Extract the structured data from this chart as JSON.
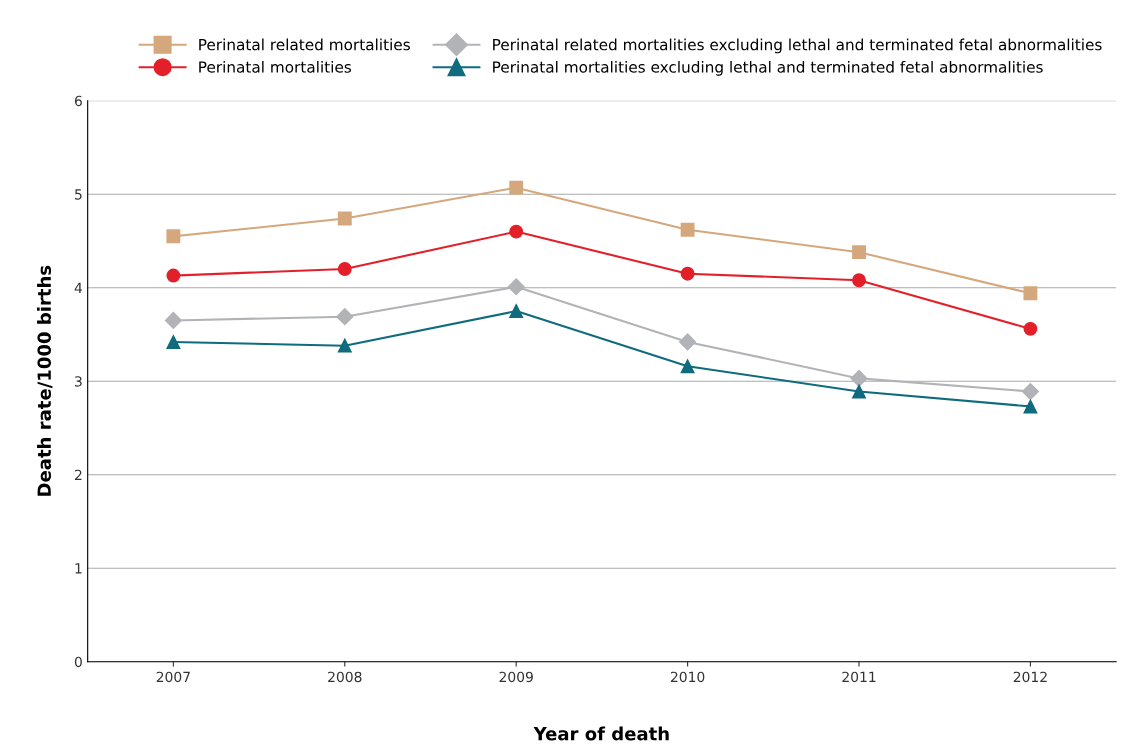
{
  "chart_data": {
    "type": "line",
    "xlabel": "Year of death",
    "ylabel": "Death rate/1000 births",
    "categories": [
      "2007",
      "2008",
      "2009",
      "2010",
      "2011",
      "2012"
    ],
    "series": [
      {
        "name": "Perinatal related mortalities",
        "color": "#d4a87c",
        "marker": "square",
        "values": [
          4.55,
          4.74,
          5.07,
          4.62,
          4.38,
          3.94
        ]
      },
      {
        "name": "Perinatal mortalities",
        "color": "#e3202a",
        "marker": "circle",
        "values": [
          4.13,
          4.2,
          4.6,
          4.15,
          4.08,
          3.56
        ]
      },
      {
        "name": "Perinatal related mortalities excluding lethal and terminated fetal abnormalities",
        "color": "#b1b3b6",
        "marker": "diamond",
        "values": [
          3.65,
          3.69,
          4.01,
          3.42,
          3.03,
          2.89
        ]
      },
      {
        "name": "Perinatal mortalities excluding lethal and terminated fetal abnormalities",
        "color": "#0f6b7e",
        "marker": "triangle",
        "values": [
          3.42,
          3.38,
          3.75,
          3.16,
          2.89,
          2.73
        ]
      }
    ],
    "ylim": [
      0,
      6
    ],
    "yticks": [
      0,
      1,
      2,
      3,
      4,
      5,
      6
    ],
    "grid": "y",
    "legend": "top right",
    "line_style": "solid"
  }
}
